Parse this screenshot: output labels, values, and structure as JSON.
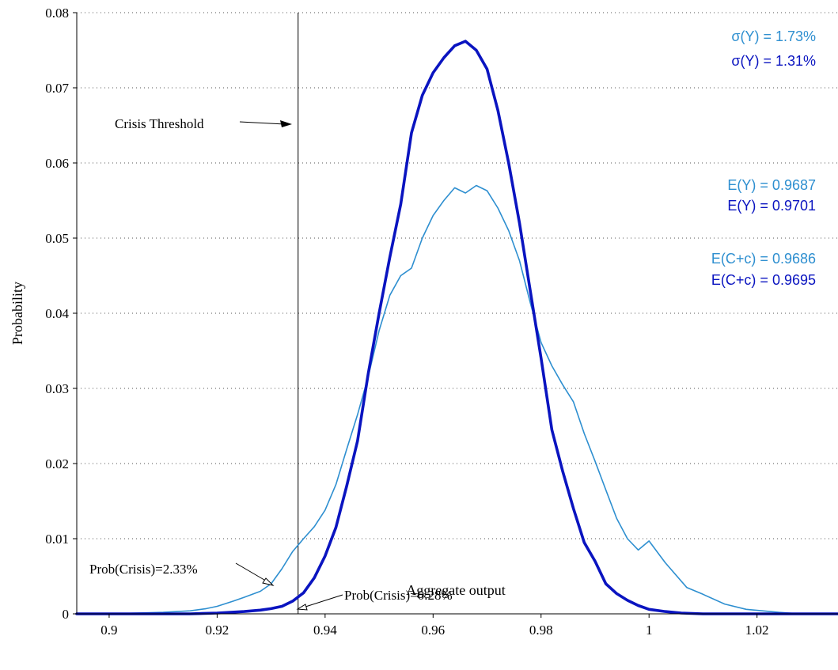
{
  "chart_data": {
    "type": "line",
    "xlabel": "Aggregate output",
    "ylabel": "Probability",
    "xlim": [
      0.894,
      1.035
    ],
    "ylim": [
      0,
      0.08
    ],
    "x_ticks": [
      0.9,
      0.92,
      0.94,
      0.96,
      0.98,
      1,
      1.02
    ],
    "x_tick_labels": [
      "0.9",
      "0.92",
      "0.94",
      "0.96",
      "0.98",
      "1",
      "1.02"
    ],
    "y_ticks": [
      0,
      0.01,
      0.02,
      0.03,
      0.04,
      0.05,
      0.06,
      0.07,
      0.08
    ],
    "y_tick_labels": [
      "0",
      "0.01",
      "0.02",
      "0.03",
      "0.04",
      "0.05",
      "0.06",
      "0.07",
      "0.08"
    ],
    "grid": "dotted horizontal",
    "threshold_x": 0.935,
    "series": [
      {
        "color": "#2e8fd0",
        "style": "thin",
        "x": [
          0.894,
          0.9,
          0.905,
          0.91,
          0.915,
          0.918,
          0.92,
          0.923,
          0.925,
          0.928,
          0.93,
          0.932,
          0.934,
          0.936,
          0.938,
          0.94,
          0.942,
          0.944,
          0.946,
          0.948,
          0.95,
          0.952,
          0.954,
          0.956,
          0.958,
          0.96,
          0.962,
          0.964,
          0.966,
          0.968,
          0.97,
          0.972,
          0.974,
          0.976,
          0.978,
          0.98,
          0.982,
          0.984,
          0.986,
          0.988,
          0.99,
          0.992,
          0.994,
          0.996,
          0.998,
          1.0,
          1.003,
          1.007,
          1.01,
          1.014,
          1.018,
          1.021,
          1.024,
          1.028,
          1.035
        ],
        "y": [
          0,
          0,
          0.0001,
          0.0002,
          0.0004,
          0.0007,
          0.001,
          0.0017,
          0.0022,
          0.003,
          0.004,
          0.006,
          0.0083,
          0.01,
          0.0116,
          0.0138,
          0.0172,
          0.0219,
          0.0265,
          0.0316,
          0.0377,
          0.0424,
          0.045,
          0.046,
          0.05,
          0.053,
          0.055,
          0.0567,
          0.056,
          0.057,
          0.0563,
          0.054,
          0.051,
          0.047,
          0.0414,
          0.0361,
          0.033,
          0.0305,
          0.0282,
          0.024,
          0.0203,
          0.0165,
          0.0127,
          0.01,
          0.0085,
          0.0097,
          0.0068,
          0.0035,
          0.0026,
          0.0013,
          0.0006,
          0.0004,
          0.0002,
          0,
          0
        ]
      },
      {
        "color": "#0a14c0",
        "style": "thick",
        "x": [
          0.894,
          0.905,
          0.915,
          0.92,
          0.925,
          0.928,
          0.93,
          0.932,
          0.934,
          0.936,
          0.938,
          0.94,
          0.942,
          0.944,
          0.946,
          0.948,
          0.95,
          0.952,
          0.954,
          0.956,
          0.958,
          0.96,
          0.962,
          0.964,
          0.966,
          0.968,
          0.97,
          0.972,
          0.974,
          0.976,
          0.978,
          0.98,
          0.982,
          0.984,
          0.986,
          0.988,
          0.99,
          0.992,
          0.994,
          0.996,
          0.998,
          1.0,
          1.003,
          1.006,
          1.01,
          1.015,
          1.02,
          1.025,
          1.035
        ],
        "y": [
          0,
          0,
          0,
          0.0001,
          0.0003,
          0.0005,
          0.0007,
          0.001,
          0.0017,
          0.0028,
          0.0048,
          0.0077,
          0.0115,
          0.017,
          0.023,
          0.032,
          0.04,
          0.0475,
          0.0545,
          0.064,
          0.069,
          0.072,
          0.074,
          0.0756,
          0.0762,
          0.075,
          0.0725,
          0.067,
          0.06,
          0.052,
          0.043,
          0.034,
          0.0245,
          0.019,
          0.014,
          0.0095,
          0.007,
          0.004,
          0.0027,
          0.0018,
          0.0011,
          0.0006,
          0.0003,
          0.0001,
          0,
          0,
          0,
          0,
          0
        ]
      }
    ],
    "annotations": {
      "crisis_threshold": "Crisis Threshold",
      "prob_crisis_light": "Prob(Crisis)=2.33%",
      "prob_crisis_dark": "Prob(Crisis)=0.28%"
    },
    "stats": [
      {
        "text": "σ(Y) = 1.73%",
        "color": "#2e8fd0"
      },
      {
        "text": "σ(Y) = 1.31%",
        "color": "#0a14c0"
      },
      {
        "text": "E(Y) = 0.9687",
        "color": "#2e8fd0"
      },
      {
        "text": "E(Y) = 0.9701",
        "color": "#0a14c0"
      },
      {
        "text": "E(C+c) = 0.9686",
        "color": "#2e8fd0"
      },
      {
        "text": "E(C+c) = 0.9695",
        "color": "#0a14c0"
      }
    ]
  }
}
